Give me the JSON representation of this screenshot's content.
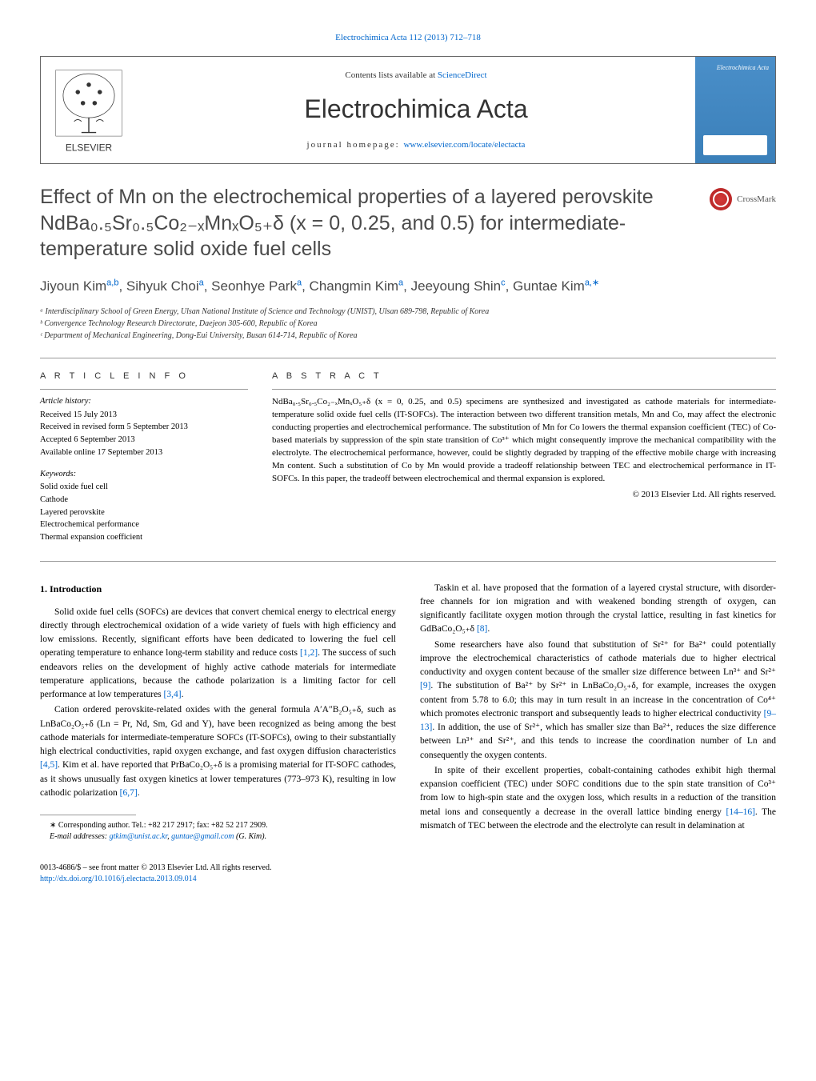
{
  "journal_link": "Electrochimica Acta 112 (2013) 712–718",
  "header": {
    "contents_prefix": "Contents lists available at ",
    "contents_link": "ScienceDirect",
    "journal_name": "Electrochimica Acta",
    "homepage_prefix": "journal homepage: ",
    "homepage_url": "www.elsevier.com/locate/electacta",
    "cover_text": "Electrochimica Acta",
    "elsevier_label": "ELSEVIER"
  },
  "title": "Effect of Mn on the electrochemical properties of a layered perovskite NdBa₀.₅Sr₀.₅Co₂₋ₓMnₓO₅₊δ (x = 0, 0.25, and 0.5) for intermediate-temperature solid oxide fuel cells",
  "crossmark_label": "CrossMark",
  "authors_html": "Jiyoun Kim<sup>a,b</sup>, Sihyuk Choi<sup>a</sup>, Seonhye Park<sup>a</sup>, Changmin Kim<sup>a</sup>, Jeeyoung Shin<sup>c</sup>, Guntae Kim<sup>a,∗</sup>",
  "affiliations": [
    "ᵃ Interdisciplinary School of Green Energy, Ulsan National Institute of Science and Technology (UNIST), Ulsan 689-798, Republic of Korea",
    "ᵇ Convergence Technology Research Directorate, Daejeon 305-600, Republic of Korea",
    "ᶜ Department of Mechanical Engineering, Dong-Eui University, Busan 614-714, Republic of Korea"
  ],
  "article_info": {
    "header": "A R T I C L E   I N F O",
    "history_label": "Article history:",
    "history": [
      "Received 15 July 2013",
      "Received in revised form 5 September 2013",
      "Accepted 6 September 2013",
      "Available online 17 September 2013"
    ],
    "keywords_label": "Keywords:",
    "keywords": [
      "Solid oxide fuel cell",
      "Cathode",
      "Layered perovskite",
      "Electrochemical performance",
      "Thermal expansion coefficient"
    ]
  },
  "abstract": {
    "header": "A B S T R A C T",
    "text": "NdBa₀.₅Sr₀.₅Co₂₋ₓMnₓO₅₊δ (x = 0, 0.25, and 0.5) specimens are synthesized and investigated as cathode materials for intermediate-temperature solid oxide fuel cells (IT-SOFCs). The interaction between two different transition metals, Mn and Co, may affect the electronic conducting properties and electrochemical performance. The substitution of Mn for Co lowers the thermal expansion coefficient (TEC) of Co-based materials by suppression of the spin state transition of Co³⁺ which might consequently improve the mechanical compatibility with the electrolyte. The electrochemical performance, however, could be slightly degraded by trapping of the effective mobile charge with increasing Mn content. Such a substitution of Co by Mn would provide a tradeoff relationship between TEC and electrochemical performance in IT-SOFCs. In this paper, the tradeoff between electrochemical and thermal expansion is explored.",
    "copyright": "© 2013 Elsevier Ltd. All rights reserved."
  },
  "intro": {
    "heading": "1.  Introduction",
    "p1_html": "Solid oxide fuel cells (SOFCs) are devices that convert chemical energy to electrical energy directly through electrochemical oxidation of a wide variety of fuels with high efficiency and low emissions. Recently, significant efforts have been dedicated to lowering the fuel cell operating temperature to enhance long-term stability and reduce costs <span class='ref'>[1,2]</span>. The success of such endeavors relies on the development of highly active cathode materials for intermediate temperature applications, because the cathode polarization is a limiting factor for cell performance at low temperatures <span class='ref'>[3,4]</span>.",
    "p2_html": "Cation ordered perovskite-related oxides with the general formula A′A″B₂O₅₊δ, such as LnBaCo₂O₅₊δ (Ln = Pr, Nd, Sm, Gd and Y), have been recognized as being among the best cathode materials for intermediate-temperature SOFCs (IT-SOFCs), owing to their substantially high electrical conductivities, rapid oxygen exchange, and fast oxygen diffusion characteristics <span class='ref'>[4,5]</span>. Kim et al. have reported that PrBaCo₂O₅₊δ is a promising material for IT-SOFC cathodes, as it shows unusually fast oxygen kinetics at lower temperatures (773–973 K), resulting in low cathodic polarization <span class='ref'>[6,7]</span>.",
    "p3_html": "Taskin et al. have proposed that the formation of a layered crystal structure, with disorder-free channels for ion migration and with weakened bonding strength of oxygen, can significantly facilitate oxygen motion through the crystal lattice, resulting in fast kinetics for GdBaCo₂O₅₊δ <span class='ref'>[8]</span>.",
    "p4_html": "Some researchers have also found that substitution of Sr²⁺ for Ba²⁺ could potentially improve the electrochemical characteristics of cathode materials due to higher electrical conductivity and oxygen content because of the smaller size difference between Ln³⁺ and Sr²⁺ <span class='ref'>[9]</span>. The substitution of Ba²⁺ by Sr²⁺ in LnBaCo₂O₅₊δ, for example, increases the oxygen content from 5.78 to 6.0; this may in turn result in an increase in the concentration of Co⁴⁺ which promotes electronic transport and subsequently leads to higher electrical conductivity <span class='ref'>[9–13]</span>. In addition, the use of Sr²⁺, which has smaller size than Ba²⁺, reduces the size difference between Ln³⁺ and Sr²⁺, and this tends to increase the coordination number of Ln and consequently the oxygen contents.",
    "p5_html": "In spite of their excellent properties, cobalt-containing cathodes exhibit high thermal expansion coefficient (TEC) under SOFC conditions due to the spin state transition of Co³⁺ from low to high-spin state and the oxygen loss, which results in a reduction of the transition metal ions and consequently a decrease in the overall lattice binding energy <span class='ref'>[14–16]</span>. The mismatch of TEC between the electrode and the electrolyte can result in delamination at"
  },
  "footnote": {
    "corresponding": "∗ Corresponding author. Tel.: +82 217 2917; fax: +82 52 217 2909.",
    "email_label": "E-mail addresses: ",
    "email1": "gtkim@unist.ac.kr",
    "email2": "guntae@gmail.com",
    "email_suffix": " (G. Kim)."
  },
  "footer": {
    "line1": "0013-4686/$ – see front matter © 2013 Elsevier Ltd. All rights reserved.",
    "doi": "http://dx.doi.org/10.1016/j.electacta.2013.09.014"
  },
  "colors": {
    "link": "#0066cc",
    "text": "#000000",
    "heading": "#4a4a4a",
    "border": "#999999",
    "cover_bg": "#4a8fc9"
  },
  "typography": {
    "title_fontsize": 25,
    "journal_name_fontsize": 32,
    "authors_fontsize": 17,
    "body_fontsize": 11.5,
    "abstract_fontsize": 11,
    "info_fontsize": 10.5,
    "footnote_fontsize": 10
  }
}
